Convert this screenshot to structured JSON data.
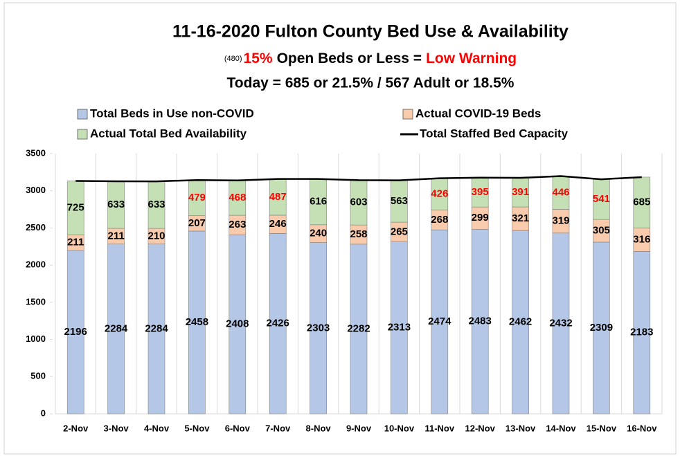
{
  "chart_data": {
    "type": "stacked_bar_line",
    "title": "11-16-2020 Fulton County Bed Use & Availability",
    "subtitle_parts": [
      "(480)",
      "15%",
      "Open Beds or Less =",
      "Low Warning"
    ],
    "subtitle2": "Today = 685 or 21.5% / 567 Adult or 18.5%",
    "categories": [
      "2-Nov",
      "3-Nov",
      "4-Nov",
      "5-Nov",
      "6-Nov",
      "7-Nov",
      "8-Nov",
      "9-Nov",
      "10-Nov",
      "11-Nov",
      "12-Nov",
      "13-Nov",
      "14-Nov",
      "15-Nov",
      "16-Nov"
    ],
    "series": [
      {
        "name": "Total Beds in Use non-COVID",
        "color": "#b4c7e7",
        "kind": "bar",
        "values": [
          2196,
          2284,
          2284,
          2458,
          2408,
          2426,
          2303,
          2282,
          2313,
          2474,
          2483,
          2462,
          2432,
          2309,
          2183
        ]
      },
      {
        "name": "Actual COVID-19 Beds",
        "color": "#f8cbad",
        "kind": "bar",
        "values": [
          211,
          211,
          210,
          207,
          263,
          246,
          240,
          258,
          265,
          268,
          299,
          321,
          319,
          305,
          316
        ]
      },
      {
        "name": "Actual Total Bed Availability",
        "color": "#c5e0b4",
        "kind": "bar",
        "values": [
          725,
          633,
          633,
          479,
          468,
          487,
          616,
          603,
          563,
          426,
          395,
          391,
          446,
          541,
          685
        ],
        "value_label_colors": [
          "#000",
          "#000",
          "#000",
          "#ff0000",
          "#ff0000",
          "#ff0000",
          "#000",
          "#000",
          "#000",
          "#ff0000",
          "#ff0000",
          "#ff0000",
          "#ff0000",
          "#ff0000",
          "#000"
        ]
      },
      {
        "name": "Total Staffed Bed Capacity",
        "color": "#000000",
        "kind": "line",
        "values": [
          3132,
          3128,
          3127,
          3144,
          3139,
          3159,
          3159,
          3143,
          3141,
          3168,
          3177,
          3174,
          3197,
          3155,
          3184
        ]
      }
    ],
    "ylim": [
      0,
      3500
    ],
    "yticks": [
      0,
      500,
      1000,
      1500,
      2000,
      2500,
      3000,
      3500
    ]
  }
}
